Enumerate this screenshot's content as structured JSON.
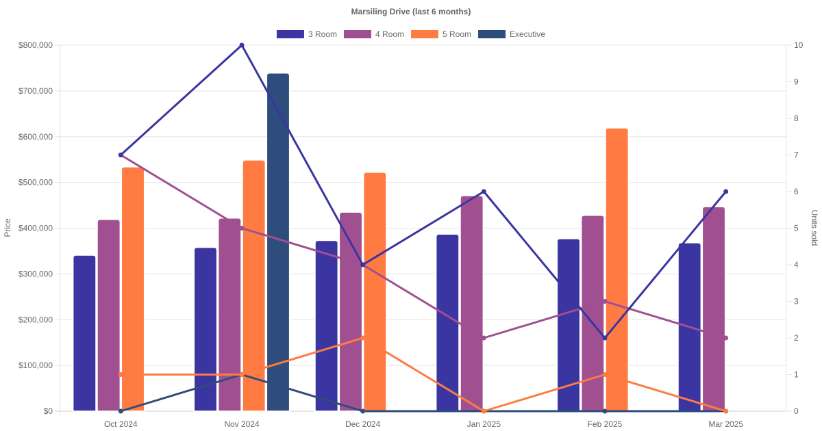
{
  "chart_data": {
    "type": "bar",
    "title": "Marsiling Drive (last 6 months)",
    "categories": [
      "Oct 2024",
      "Nov 2024",
      "Dec 2024",
      "Jan 2025",
      "Feb 2025",
      "Mar 2025"
    ],
    "ylabel": "Price",
    "y2label": "Units sold",
    "ylim": [
      0,
      800000
    ],
    "y2lim": [
      0,
      10
    ],
    "yticks": [
      "$0",
      "$100,000",
      "$200,000",
      "$300,000",
      "$400,000",
      "$500,000",
      "$600,000",
      "$700,000",
      "$800,000"
    ],
    "y2ticks": [
      "0",
      "1",
      "2",
      "3",
      "4",
      "5",
      "6",
      "7",
      "8",
      "9",
      "10"
    ],
    "grid": true,
    "legend_position": "top",
    "series": [
      {
        "name": "3 Room",
        "color": "#3a35a0",
        "bar_axis": "Price",
        "prices": [
          341000,
          358000,
          373000,
          387000,
          377000,
          368000
        ],
        "units_sold": [
          7,
          10,
          4,
          6,
          2,
          6
        ]
      },
      {
        "name": "4 Room",
        "color": "#a05091",
        "bar_axis": "Price",
        "prices": [
          419000,
          422000,
          435000,
          471000,
          428000,
          447000
        ],
        "units_sold": [
          7,
          5,
          4,
          2,
          3,
          2
        ]
      },
      {
        "name": "5 Room",
        "color": "#ff7b42",
        "bar_axis": "Price",
        "prices": [
          534000,
          549000,
          522000,
          null,
          619000,
          null
        ],
        "units_sold": [
          1,
          1,
          2,
          0,
          1,
          0
        ]
      },
      {
        "name": "Executive",
        "color": "#2f4d7c",
        "bar_axis": "Price",
        "prices": [
          null,
          739000,
          null,
          null,
          null,
          null
        ],
        "units_sold": [
          0,
          1,
          0,
          0,
          0,
          0
        ]
      }
    ]
  }
}
